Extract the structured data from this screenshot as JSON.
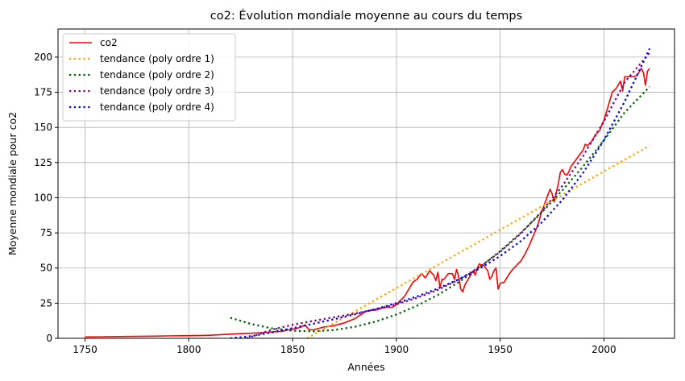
{
  "chart_data": {
    "type": "line",
    "title": "co2: Évolution mondiale moyenne au cours du temps",
    "xlabel": "Années",
    "ylabel": "Moyenne mondiale pour co2",
    "xlim": [
      1737,
      2034
    ],
    "ylim": [
      0,
      220
    ],
    "xticks": [
      1750,
      1800,
      1850,
      1900,
      1950,
      2000
    ],
    "yticks": [
      0,
      25,
      50,
      75,
      100,
      125,
      150,
      175,
      200
    ],
    "grid": true,
    "legend_position": "top-left",
    "series": [
      {
        "name": "co2",
        "color": "#ff0000",
        "style": "solid",
        "x": [
          1750,
          1760,
          1770,
          1780,
          1790,
          1800,
          1805,
          1810,
          1815,
          1820,
          1825,
          1830,
          1835,
          1840,
          1845,
          1848,
          1850,
          1852,
          1854,
          1856,
          1858,
          1860,
          1865,
          1870,
          1875,
          1880,
          1883,
          1885,
          1888,
          1890,
          1893,
          1895,
          1898,
          1900,
          1902,
          1904,
          1906,
          1908,
          1910,
          1912,
          1914,
          1916,
          1918,
          1919,
          1920,
          1921,
          1922,
          1923,
          1925,
          1927,
          1928,
          1929,
          1930,
          1931,
          1932,
          1933,
          1935,
          1937,
          1938,
          1939,
          1940,
          1941,
          1942,
          1943,
          1944,
          1945,
          1946,
          1947,
          1948,
          1949,
          1950,
          1952,
          1954,
          1956,
          1958,
          1960,
          1962,
          1964,
          1966,
          1968,
          1970,
          1972,
          1974,
          1975,
          1976,
          1978,
          1979,
          1980,
          1981,
          1982,
          1983,
          1984,
          1986,
          1988,
          1990,
          1991,
          1992,
          1994,
          1996,
          1998,
          1999,
          2000,
          2002,
          2004,
          2006,
          2008,
          2009,
          2010,
          2012,
          2014,
          2016,
          2018,
          2019,
          2020,
          2021,
          2022
        ],
        "y": [
          1,
          1.1,
          1.3,
          1.5,
          1.7,
          1.9,
          2,
          2.2,
          2.5,
          3,
          3.3,
          3.6,
          4,
          4.5,
          5,
          6,
          6.5,
          7,
          8,
          9.5,
          6,
          6,
          8,
          9,
          11,
          14,
          17,
          19,
          20,
          20,
          21.5,
          22,
          22,
          24,
          27,
          30,
          35,
          40,
          42,
          46,
          43,
          48,
          45,
          41,
          47,
          36,
          42,
          42,
          46,
          46,
          42,
          49,
          44,
          35,
          33,
          38,
          43,
          48,
          45,
          50,
          53,
          52,
          52,
          50,
          48,
          42,
          44,
          48,
          50,
          35,
          39,
          40,
          45,
          49,
          52,
          55,
          60,
          66,
          73,
          80,
          90,
          98,
          106,
          103,
          97,
          110,
          118,
          120,
          117,
          116,
          118,
          122,
          126,
          130,
          134,
          138,
          137,
          140,
          145,
          148,
          152,
          155,
          165,
          175,
          178,
          183,
          176,
          186,
          186,
          186,
          187,
          192,
          189,
          180,
          190,
          192
        ]
      },
      {
        "name": "tendance (poly ordre 1)",
        "color": "#ffa500",
        "style": "dotted",
        "x": [
          1857,
          1870,
          1880,
          1890,
          1900,
          1910,
          1920,
          1930,
          1940,
          1950,
          1960,
          1970,
          1980,
          1990,
          2000,
          2010,
          2022
        ],
        "y": [
          0,
          10.8,
          19.1,
          27.4,
          35.7,
          44.0,
          52.3,
          60.6,
          68.9,
          77.2,
          85.5,
          93.8,
          102.1,
          110.4,
          118.7,
          127.0,
          137.0
        ]
      },
      {
        "name": "tendance (poly ordre 2)",
        "color": "#006400",
        "style": "dotted",
        "x": [
          1820,
          1830,
          1840,
          1850,
          1860,
          1870,
          1880,
          1890,
          1900,
          1910,
          1920,
          1930,
          1940,
          1950,
          1960,
          1970,
          1980,
          1990,
          2000,
          2010,
          2022
        ],
        "y": [
          14.6,
          10.2,
          7.1,
          5.4,
          5.0,
          5.9,
          8.2,
          11.9,
          16.9,
          23.2,
          30.9,
          39.9,
          50.3,
          62.0,
          75.1,
          89.5,
          105.3,
          122.4,
          140.9,
          160.7,
          179.0
        ]
      },
      {
        "name": "tendance (poly ordre 3)",
        "color": "#800080",
        "style": "dotted",
        "x": [
          1828,
          1840,
          1850,
          1860,
          1870,
          1880,
          1890,
          1900,
          1910,
          1920,
          1930,
          1940,
          1950,
          1960,
          1970,
          1980,
          1990,
          2000,
          2010,
          2022
        ],
        "y": [
          0,
          6.2,
          9.6,
          12.4,
          15.0,
          17.6,
          20.6,
          24.2,
          28.8,
          34.5,
          41.7,
          50.6,
          61.5,
          74.6,
          90.2,
          108.5,
          129.8,
          154.3,
          182.2,
          203.0
        ]
      },
      {
        "name": "tendance (poly ordre 4)",
        "color": "#0000ff",
        "style": "dotted",
        "x": [
          1820,
          1830,
          1840,
          1850,
          1860,
          1870,
          1880,
          1890,
          1900,
          1910,
          1920,
          1930,
          1940,
          1950,
          1960,
          1970,
          1980,
          1990,
          2000,
          2010,
          2022
        ],
        "y": [
          0,
          1.5,
          4.2,
          7.2,
          10.3,
          13.6,
          17.1,
          20.8,
          25.0,
          29.8,
          35.4,
          41.9,
          49.5,
          58.5,
          69.2,
          82.4,
          98.4,
          117.8,
          141.0,
          168.5,
          206.0
        ]
      }
    ]
  }
}
